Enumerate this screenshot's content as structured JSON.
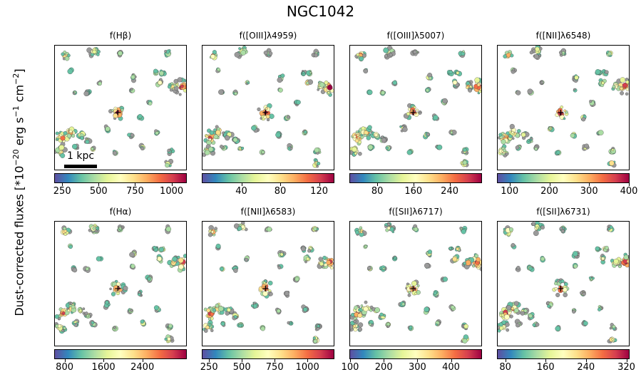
{
  "title": "NGC1042",
  "ylabel_main": "Dust-corrected fluxes [*10",
  "ylabel_exp1": "−20",
  "ylabel_mid": " erg s",
  "ylabel_exp2": "−1",
  "ylabel_cm": " cm",
  "ylabel_exp3": "−2",
  "ylabel_end": "]",
  "scale_label": "1 kpc",
  "colormap": "Spectral_r",
  "colors": {
    "low": "#5e4fa2",
    "mid": "#ffffbf",
    "high": "#9e0142"
  },
  "chart_data": [
    {
      "type": "heatmap",
      "title": "f(Hβ)",
      "cbar_range": [
        200,
        1100
      ],
      "ticks": [
        250,
        500,
        750,
        1000
      ],
      "tick_labels": [
        "250",
        "500",
        "750",
        "1000"
      ]
    },
    {
      "type": "heatmap",
      "title": "f([OIII]λ4959)",
      "cbar_range": [
        0,
        135
      ],
      "ticks": [
        40,
        80,
        120
      ],
      "tick_labels": [
        "40",
        "80",
        "120"
      ]
    },
    {
      "type": "heatmap",
      "title": "f([OIII]λ5007)",
      "cbar_range": [
        20,
        310
      ],
      "ticks": [
        80,
        160,
        240
      ],
      "tick_labels": [
        "80",
        "160",
        "240"
      ]
    },
    {
      "type": "heatmap",
      "title": "f([NII]λ6548)",
      "cbar_range": [
        70,
        400
      ],
      "ticks": [
        100,
        200,
        300,
        400
      ],
      "tick_labels": [
        "100",
        "200",
        "300",
        "400"
      ]
    },
    {
      "type": "heatmap",
      "title": "f(Hα)",
      "cbar_range": [
        600,
        3300
      ],
      "ticks": [
        800,
        1600,
        2400
      ],
      "tick_labels": [
        "800",
        "1600",
        "2400"
      ]
    },
    {
      "type": "heatmap",
      "title": "f([NII]λ6583)",
      "cbar_range": [
        200,
        1200
      ],
      "ticks": [
        250,
        500,
        750,
        1000
      ],
      "tick_labels": [
        "250",
        "500",
        "750",
        "1000"
      ]
    },
    {
      "type": "heatmap",
      "title": "f([SII]λ6717)",
      "cbar_range": [
        100,
        490
      ],
      "ticks": [
        100,
        200,
        300,
        400
      ],
      "tick_labels": [
        "100",
        "200",
        "300",
        "400"
      ]
    },
    {
      "type": "heatmap",
      "title": "f([SII]λ6731)",
      "cbar_range": [
        65,
        325
      ],
      "ticks": [
        80,
        160,
        240,
        320
      ],
      "tick_labels": [
        "80",
        "160",
        "240",
        "320"
      ]
    }
  ]
}
